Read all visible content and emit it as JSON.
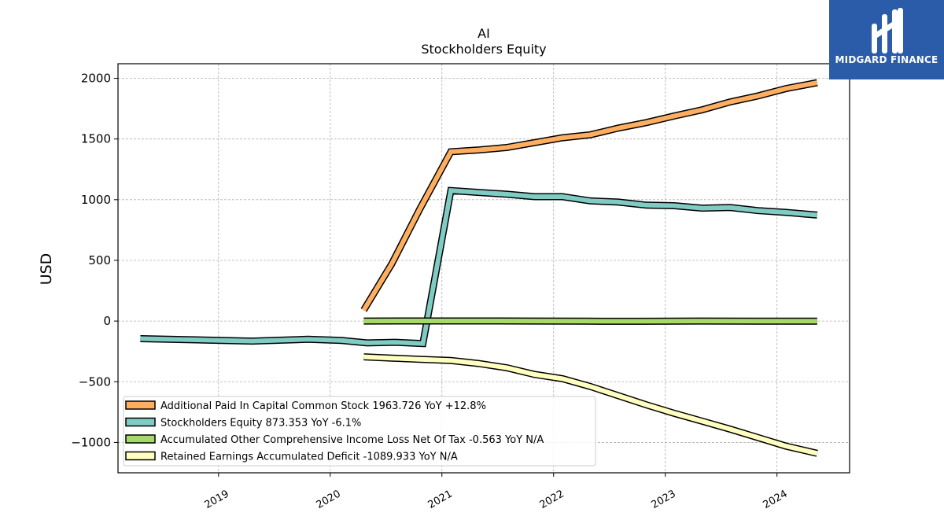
{
  "chart_data": {
    "type": "line",
    "title": [
      "AI",
      "Stockholders  Equity"
    ],
    "ylabel": "USD",
    "xlabel": "",
    "xlim": [
      2018.1,
      2024.65
    ],
    "ylim": [
      -1250,
      2120
    ],
    "yticks": [
      2000,
      1500,
      1000,
      500,
      0,
      -500,
      -1000
    ],
    "ytick_labels": [
      "2000",
      "1500",
      "1000",
      "500",
      "0",
      "−500",
      "−1000"
    ],
    "xticks": [
      2019,
      2020,
      2021,
      2022,
      2023,
      2024
    ],
    "xtick_labels": [
      "2019",
      "2020",
      "2021",
      "2022",
      "2023",
      "2024"
    ],
    "grid": true,
    "legend_position": "lower-left",
    "series": [
      {
        "name": "Additional Paid In Capital Common Stock  1963.726 YoY +12.8%",
        "color": "#fdae61",
        "x": [
          2020.3,
          2020.55,
          2020.8,
          2021.08,
          2021.33,
          2021.58,
          2021.83,
          2022.08,
          2022.33,
          2022.58,
          2022.83,
          2023.08,
          2023.33,
          2023.58,
          2023.83,
          2024.08,
          2024.36
        ],
        "y": [
          90,
          470,
          920,
          1395,
          1410,
          1430,
          1470,
          1510,
          1535,
          1590,
          1635,
          1690,
          1740,
          1805,
          1855,
          1915,
          1963.726
        ]
      },
      {
        "name": "Stockholders Equity  873.353 YoY -6.1%",
        "color": "#80cbc4",
        "x": [
          2018.3,
          2018.8,
          2019.3,
          2019.8,
          2020.1,
          2020.33,
          2020.58,
          2020.83,
          2021.08,
          2021.33,
          2021.58,
          2021.83,
          2022.08,
          2022.33,
          2022.58,
          2022.83,
          2023.08,
          2023.33,
          2023.58,
          2023.83,
          2024.08,
          2024.36
        ],
        "y": [
          -145,
          -155,
          -165,
          -150,
          -160,
          -180,
          -175,
          -185,
          1075,
          1060,
          1045,
          1025,
          1025,
          990,
          980,
          955,
          950,
          930,
          935,
          910,
          895,
          873.353
        ]
      },
      {
        "name": "Accumulated Other Comprehensive Income Loss Net Of Tax  -0.563 YoY N/A",
        "color": "#a6d96a",
        "x": [
          2020.3,
          2020.8,
          2021.3,
          2021.8,
          2022.3,
          2022.8,
          2023.3,
          2023.8,
          2024.36
        ],
        "y": [
          0,
          1,
          1,
          0,
          -1,
          -2,
          0,
          -1,
          -0.563
        ]
      },
      {
        "name": "Retained Earnings Accumulated Deficit  -1089.933 YoY N/A",
        "color": "#ffffbf",
        "x": [
          2020.3,
          2020.55,
          2020.8,
          2021.08,
          2021.33,
          2021.58,
          2021.83,
          2022.08,
          2022.33,
          2022.58,
          2022.83,
          2023.08,
          2023.33,
          2023.58,
          2023.83,
          2024.08,
          2024.36
        ],
        "y": [
          -295,
          -305,
          -315,
          -325,
          -350,
          -385,
          -440,
          -475,
          -540,
          -615,
          -690,
          -760,
          -825,
          -890,
          -960,
          -1030,
          -1089.933
        ]
      }
    ]
  },
  "logo": {
    "text": "MIDGARD FINANCE",
    "background": "#2a5caa"
  }
}
